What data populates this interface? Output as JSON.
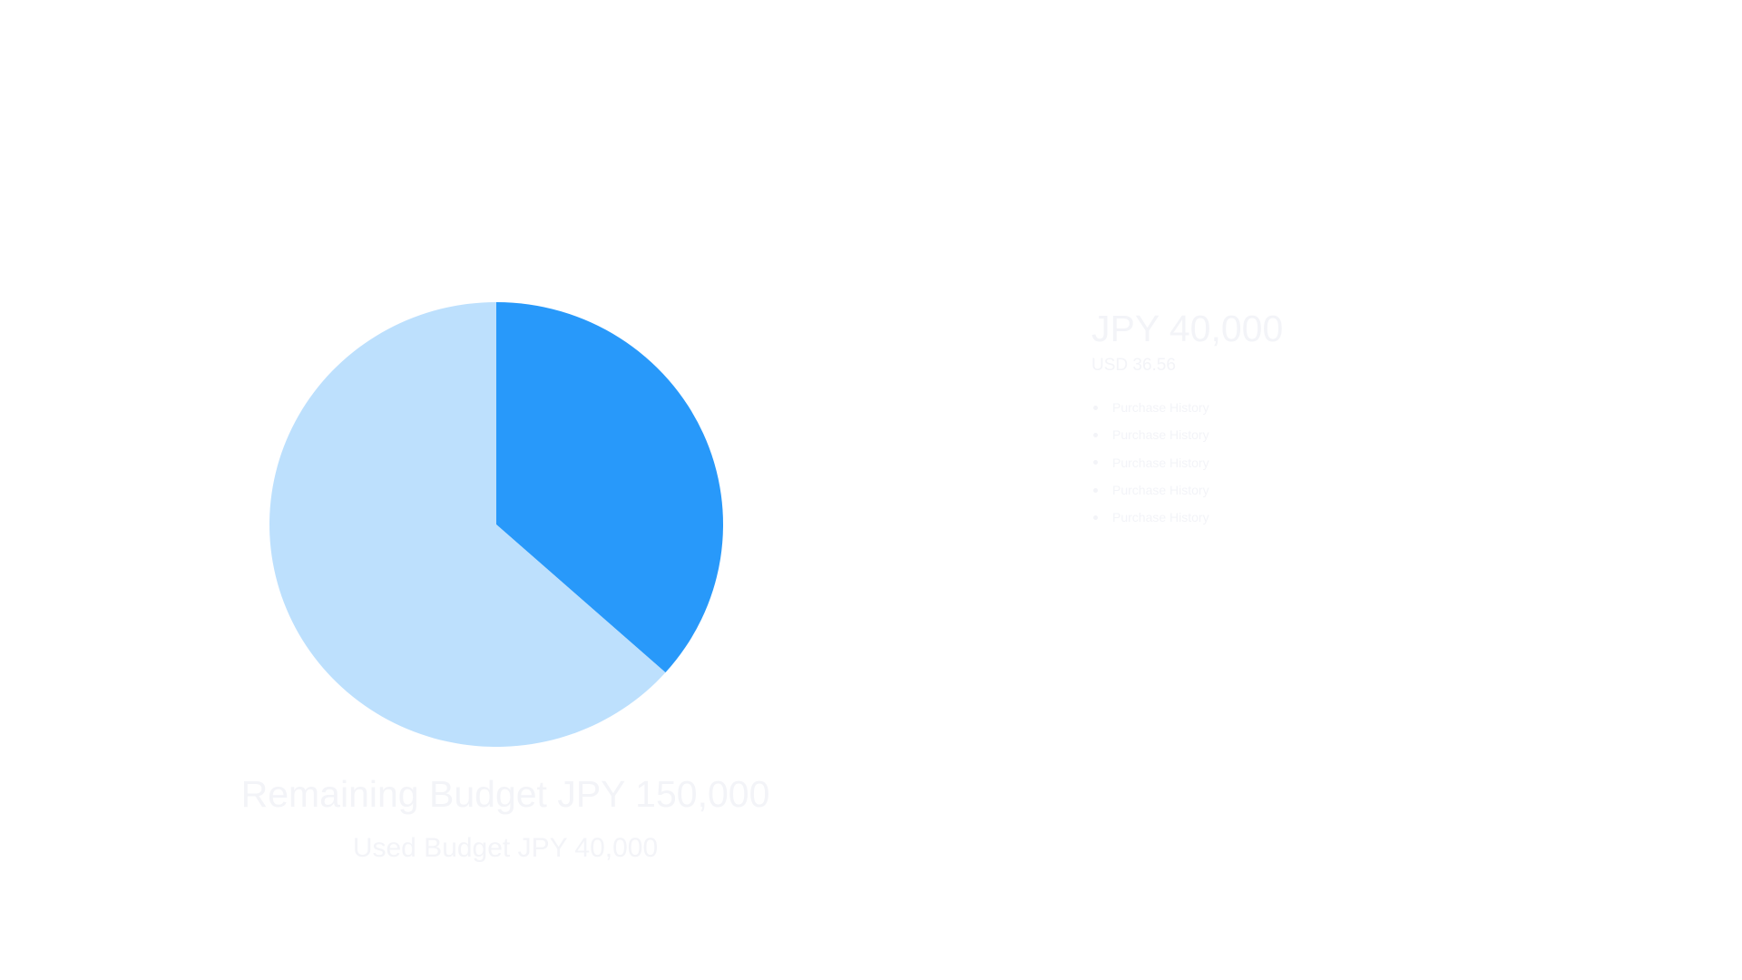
{
  "budget": {
    "remaining_label": "Remaining Budget JPY 150,000",
    "used_label": "Used Budget JPY 40,000"
  },
  "summary": {
    "amount": "JPY 40,000",
    "secondary": "USD 36.56",
    "history": [
      {
        "label": "Purchase History"
      },
      {
        "label": "Purchase History"
      },
      {
        "label": "Purchase History"
      },
      {
        "label": "Purchase History"
      },
      {
        "label": "Purchase History"
      }
    ]
  },
  "chart_data": {
    "type": "pie",
    "slices": [
      {
        "value": 36.6,
        "color": "#2899fa"
      },
      {
        "value": 63.4,
        "color": "#bde0fd"
      }
    ]
  }
}
